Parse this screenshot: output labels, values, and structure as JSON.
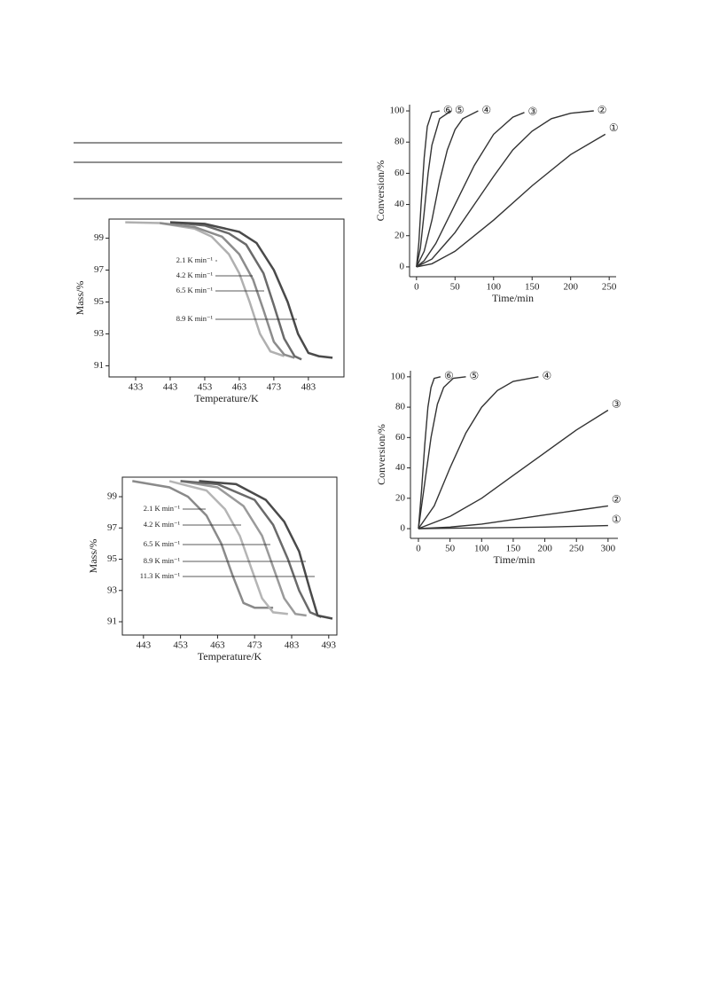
{
  "chart_data": [
    {
      "type": "line",
      "x_label": "Temperature/K",
      "y_label": "Mass/%",
      "xlim": [
        425.3,
        493.3
      ],
      "ylim": [
        90.3,
        100.2
      ],
      "xticks": [
        433,
        443,
        453,
        463,
        473,
        483
      ],
      "yticks": [
        91,
        93,
        95,
        97,
        99
      ],
      "series": [
        {
          "name": "2.1 K min⁻¹",
          "color": "#b0b0b0",
          "x": [
            430,
            440,
            450,
            455,
            460,
            463,
            466,
            469,
            472,
            476
          ],
          "values": [
            100,
            99.95,
            99.6,
            99.1,
            98,
            96.8,
            95,
            93,
            91.9,
            91.6
          ]
        },
        {
          "name": "4.2 K min⁻¹",
          "color": "#8c8c8c",
          "x": [
            440,
            450,
            458,
            463,
            467,
            470,
            473,
            476,
            479
          ],
          "values": [
            99.95,
            99.7,
            99.1,
            98,
            96.4,
            94.5,
            92.5,
            91.7,
            91.5
          ]
        },
        {
          "name": "6.5 K min⁻¹",
          "color": "#6a6a6a",
          "x": [
            443,
            453,
            460,
            465,
            470,
            473,
            476,
            479,
            481
          ],
          "values": [
            100,
            99.8,
            99.3,
            98.6,
            96.8,
            94.8,
            92.7,
            91.6,
            91.4
          ]
        },
        {
          "name": "8.9 K min⁻¹",
          "color": "#4a4a4a",
          "x": [
            443,
            453,
            463,
            468,
            473,
            477,
            480,
            483,
            486,
            490
          ],
          "values": [
            100,
            99.9,
            99.4,
            98.7,
            97,
            95,
            93,
            91.8,
            91.6,
            91.5
          ]
        }
      ]
    },
    {
      "type": "line",
      "x_label": "Temperature/K",
      "y_label": "Mass/%",
      "xlim": [
        437.3,
        495.2
      ],
      "ylim": [
        90.15,
        100.25
      ],
      "xticks": [
        443,
        453,
        463,
        473,
        483,
        493
      ],
      "yticks": [
        91,
        93,
        95,
        97,
        99
      ],
      "series": [
        {
          "name": "2.1 K min⁻¹",
          "color": "#8a8a8a",
          "x": [
            440,
            450,
            455,
            460,
            464,
            467,
            470,
            473,
            478
          ],
          "values": [
            100,
            99.6,
            99,
            97.8,
            96,
            94,
            92.2,
            91.9,
            91.9
          ]
        },
        {
          "name": "4.2 K min⁻¹",
          "color": "#b5b5b5",
          "x": [
            450,
            460,
            465,
            469,
            472,
            475,
            478,
            482
          ],
          "values": [
            100,
            99.4,
            98.2,
            96.5,
            94.5,
            92.5,
            91.6,
            91.5
          ]
        },
        {
          "name": "6.5 K min⁻¹",
          "color": "#9a9a9a",
          "x": [
            453,
            463,
            470,
            475,
            478,
            481,
            484,
            487
          ],
          "values": [
            100,
            99.6,
            98.4,
            96.5,
            94.5,
            92.5,
            91.5,
            91.4
          ]
        },
        {
          "name": "8.9 K min⁻¹",
          "color": "#6a6a6a",
          "x": [
            453,
            463,
            473,
            478,
            482,
            485,
            488,
            491
          ],
          "values": [
            100,
            99.8,
            98.8,
            97.2,
            95,
            93,
            91.6,
            91.3
          ]
        },
        {
          "name": "11.3 K min⁻¹",
          "color": "#4a4a4a",
          "x": [
            458,
            468,
            476,
            481,
            485,
            488,
            490,
            494
          ],
          "values": [
            100,
            99.8,
            98.8,
            97.4,
            95.5,
            93,
            91.4,
            91.2
          ]
        }
      ]
    },
    {
      "type": "line",
      "x_label": "Time/min",
      "y_label": "Conversion/%",
      "xlim": [
        -9,
        259
      ],
      "ylim": [
        -6.3,
        104
      ],
      "xticks": [
        0,
        50,
        100,
        150,
        200,
        250
      ],
      "yticks": [
        0,
        20,
        40,
        60,
        80,
        100
      ],
      "series": [
        {
          "name": "①",
          "color": "#333",
          "x": [
            0,
            20,
            50,
            100,
            150,
            200,
            245
          ],
          "values": [
            0,
            2,
            10,
            30,
            52,
            72,
            85
          ]
        },
        {
          "name": "②",
          "color": "#333",
          "x": [
            0,
            20,
            50,
            75,
            100,
            125,
            150,
            175,
            200,
            230
          ],
          "values": [
            0,
            5,
            22,
            40,
            58,
            75,
            87,
            95,
            98.5,
            100
          ]
        },
        {
          "name": "③",
          "color": "#333",
          "x": [
            0,
            10,
            25,
            50,
            75,
            100,
            125,
            140
          ],
          "values": [
            0,
            4,
            15,
            40,
            65,
            85,
            96,
            99
          ]
        },
        {
          "name": "④",
          "color": "#333",
          "x": [
            0,
            10,
            20,
            30,
            40,
            50,
            60,
            80
          ],
          "values": [
            0,
            10,
            30,
            55,
            75,
            88,
            95,
            100
          ]
        },
        {
          "name": "⑤",
          "color": "#333",
          "x": [
            0,
            5,
            10,
            15,
            20,
            30,
            45
          ],
          "values": [
            0,
            12,
            35,
            60,
            78,
            95,
            100
          ]
        },
        {
          "name": "⑥",
          "color": "#333",
          "x": [
            0,
            3,
            6,
            10,
            14,
            20,
            30
          ],
          "values": [
            0,
            15,
            40,
            70,
            90,
            99,
            100
          ]
        }
      ]
    },
    {
      "type": "line",
      "x_label": "Time/min",
      "y_label": "Conversion/%",
      "xlim": [
        -12.6,
        315.6
      ],
      "ylim": [
        -6.4,
        104
      ],
      "xticks": [
        0,
        50,
        100,
        150,
        200,
        250,
        300
      ],
      "yticks": [
        0,
        20,
        40,
        60,
        80,
        100
      ],
      "series": [
        {
          "name": "①",
          "color": "#333",
          "x": [
            0,
            100,
            200,
            300
          ],
          "values": [
            0,
            0.5,
            1,
            2
          ]
        },
        {
          "name": "②",
          "color": "#333",
          "x": [
            0,
            50,
            100,
            150,
            200,
            250,
            300
          ],
          "values": [
            0,
            1,
            3,
            6,
            9,
            12,
            15
          ]
        },
        {
          "name": "③",
          "color": "#333",
          "x": [
            0,
            50,
            100,
            150,
            200,
            250,
            300
          ],
          "values": [
            0,
            8,
            20,
            35,
            50,
            65,
            78
          ]
        },
        {
          "name": "④",
          "color": "#333",
          "x": [
            0,
            25,
            50,
            75,
            100,
            125,
            150,
            190
          ],
          "values": [
            0,
            15,
            40,
            63,
            80,
            91,
            97,
            100
          ]
        },
        {
          "name": "⑤",
          "color": "#333",
          "x": [
            0,
            10,
            20,
            30,
            40,
            55,
            75
          ],
          "values": [
            0,
            30,
            60,
            82,
            93,
            99,
            100
          ]
        },
        {
          "name": "⑥",
          "color": "#333",
          "x": [
            0,
            5,
            10,
            15,
            20,
            25,
            35
          ],
          "values": [
            0,
            25,
            55,
            80,
            93,
            99,
            100
          ]
        }
      ]
    }
  ]
}
